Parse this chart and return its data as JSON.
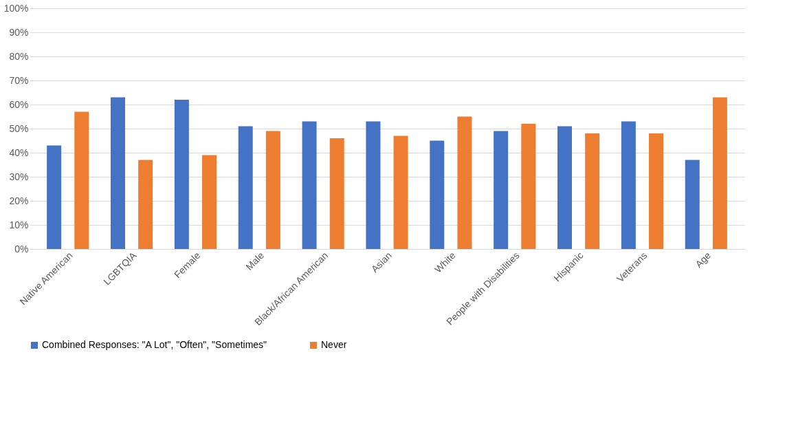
{
  "chart_data": {
    "type": "bar",
    "categories": [
      "Native American",
      "LGBTQIA",
      "Female",
      "Male",
      "Black/African American",
      "Asian",
      "White",
      "People with Disabilities",
      "Hispanic",
      "Veterans",
      "Age"
    ],
    "series": [
      {
        "name": "Combined Responses: \"A Lot\", \"Often\", \"Sometimes\"",
        "color": "#4472c4",
        "values": [
          43,
          63,
          62,
          51,
          53,
          53,
          45,
          49,
          51,
          53,
          37
        ]
      },
      {
        "name": "Never",
        "color": "#ed7d31",
        "values": [
          57,
          37,
          39,
          49,
          46,
          47,
          55,
          52,
          48,
          48,
          63
        ]
      }
    ],
    "ylim": [
      0,
      100
    ],
    "yticks": [
      {
        "value": 0,
        "label": "0%"
      },
      {
        "value": 10,
        "label": "10%"
      },
      {
        "value": 20,
        "label": "20%"
      },
      {
        "value": 30,
        "label": "30%"
      },
      {
        "value": 40,
        "label": "40%"
      },
      {
        "value": 50,
        "label": "50%"
      },
      {
        "value": 60,
        "label": "60%"
      },
      {
        "value": 70,
        "label": "70%"
      },
      {
        "value": 80,
        "label": "80%"
      },
      {
        "value": 90,
        "label": "90%"
      },
      {
        "value": 100,
        "label": "100%"
      }
    ],
    "grid": "y",
    "legend": "bottom"
  }
}
